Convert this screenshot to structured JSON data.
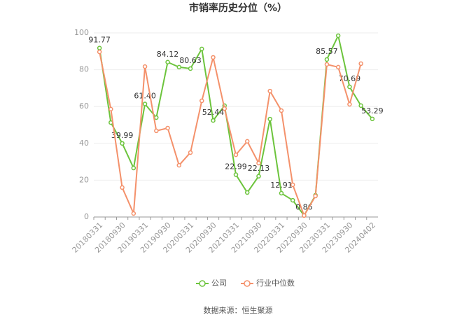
{
  "chart_data": {
    "type": "line",
    "title": "市销率历史分位（%）",
    "categories": [
      "20180331",
      null,
      "20180930",
      null,
      "20190331",
      null,
      "20190930",
      null,
      "20200331",
      null,
      "20200930",
      null,
      "20210331",
      null,
      "20210930",
      null,
      "20220331",
      null,
      "20220930",
      null,
      "20230331",
      null,
      "20230930",
      null,
      "20240402"
    ],
    "series": [
      {
        "name": "公司",
        "color": "#6cc43c",
        "values": [
          91.77,
          51.3,
          39.99,
          26.6,
          61.4,
          54.0,
          84.12,
          81.4,
          80.63,
          91.3,
          52.44,
          60.5,
          22.99,
          13.3,
          22.13,
          53.2,
          12.91,
          9.1,
          0.86,
          11.8,
          85.57,
          98.5,
          70.69,
          60.5,
          53.29
        ],
        "value_labels": [
          "91.77",
          null,
          "39.99",
          null,
          "61.40",
          null,
          "84.12",
          null,
          "80.63",
          null,
          "52.44",
          null,
          "22.99",
          null,
          "22.13",
          null,
          "12.91",
          null,
          "0.86",
          null,
          "85.57",
          null,
          "70.69",
          null,
          "53.29"
        ]
      },
      {
        "name": "行业中位数",
        "color": "#f4916b",
        "values": [
          89.7,
          58.6,
          16.0,
          1.9,
          81.7,
          46.8,
          48.3,
          28.1,
          35.0,
          63.1,
          86.7,
          58.9,
          33.8,
          41.1,
          29.3,
          68.4,
          57.8,
          17.5,
          0.8,
          11.4,
          82.9,
          81.4,
          61.2,
          83.3,
          null
        ]
      }
    ],
    "ylim": [
      0,
      100
    ],
    "yticks": [
      0,
      20,
      40,
      60,
      80,
      100
    ],
    "grid": true,
    "source": "数据来源：恒生聚源"
  }
}
